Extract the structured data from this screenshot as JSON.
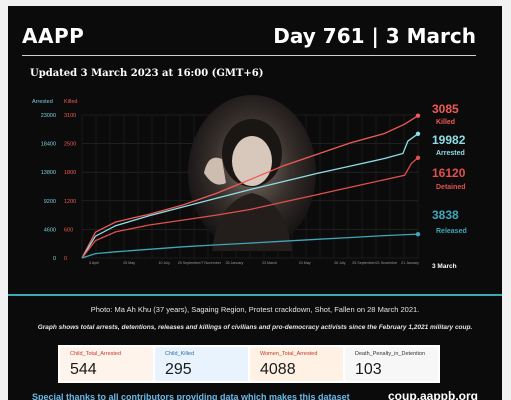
{
  "header": {
    "org": "AAPP",
    "day_label": "Day 761 | 3 March"
  },
  "updated": "Updated 3 March 2023 at 16:00 (GMT+6)",
  "chart_data": {
    "type": "line",
    "left_axis": {
      "label": "Arrested",
      "ticks": [
        "23000",
        "18400",
        "13800",
        "9200",
        "4600",
        "0"
      ],
      "ylim": [
        0,
        23000
      ]
    },
    "right_axis": {
      "label": "Killed",
      "ticks": [
        "3100",
        "2500",
        "1800",
        "1200",
        "600",
        "0"
      ],
      "ylim": [
        0,
        3100
      ]
    },
    "x_ticks": [
      "3 April",
      "25 May",
      "10 July",
      "25 September/7 November",
      "26 January",
      "23 March",
      "24 May",
      "26 July",
      "25 September/21 November",
      "21 January"
    ],
    "end_label": "3 March",
    "xlim": [
      0,
      1
    ],
    "series": [
      {
        "name": "Killed",
        "axis": "right",
        "color": "#ef5b57",
        "final": "3085",
        "x": [
          0,
          0.04,
          0.1,
          0.2,
          0.3,
          0.4,
          0.5,
          0.6,
          0.7,
          0.8,
          0.9,
          0.96,
          1.0
        ],
        "values": [
          0,
          560,
          780,
          950,
          1150,
          1400,
          1700,
          2000,
          2250,
          2500,
          2700,
          2900,
          3085
        ]
      },
      {
        "name": "Arrested",
        "axis": "left",
        "color": "#8fdde6",
        "final": "19982",
        "x": [
          0,
          0.04,
          0.1,
          0.2,
          0.3,
          0.4,
          0.5,
          0.6,
          0.7,
          0.8,
          0.9,
          0.955,
          0.97,
          1.0
        ],
        "values": [
          0,
          3500,
          5200,
          6800,
          8200,
          9600,
          11000,
          12300,
          13600,
          14800,
          16000,
          16800,
          18800,
          19982
        ]
      },
      {
        "name": "Detained",
        "axis": "left",
        "color": "#e0504c",
        "final": "16120",
        "x": [
          0,
          0.04,
          0.1,
          0.2,
          0.3,
          0.4,
          0.5,
          0.6,
          0.7,
          0.8,
          0.9,
          0.96,
          0.98,
          1.0
        ],
        "values": [
          0,
          2800,
          4200,
          5300,
          6100,
          6900,
          7800,
          9000,
          10200,
          11400,
          12600,
          13300,
          15200,
          16120
        ]
      },
      {
        "name": "Released",
        "axis": "left",
        "color": "#3fa7b8",
        "final": "3838",
        "x": [
          0,
          0.04,
          0.1,
          0.2,
          0.3,
          0.4,
          0.5,
          0.6,
          0.7,
          0.8,
          0.9,
          1.0
        ],
        "values": [
          0,
          700,
          1000,
          1400,
          1800,
          2100,
          2400,
          2700,
          3000,
          3300,
          3600,
          3838
        ]
      }
    ]
  },
  "caption": "Photo: Ma Ah Khu (37 years), Sagaing Region, Protest crackdown, Shot, Fallen on 28 March 2021.",
  "note": "Graph shows total arrests, detentions, releases and killings of civilians and pro-democracy activists since the February 1,2021 military coup.",
  "stats": [
    {
      "label": "Child_Total_Arrested",
      "value": "544"
    },
    {
      "label": "Child_Killed",
      "value": "295"
    },
    {
      "label": "Women_Total_Arrested",
      "value": "4088"
    },
    {
      "label": "Death_Penalty_in_Detention",
      "value": "103"
    }
  ],
  "footer": {
    "thanks": "Special thanks to all contributors providing data which makes this dataset",
    "url": "coup.aappb.org"
  },
  "colors": {
    "background": "#0b0b0b",
    "killed": "#ef5b57",
    "arrested": "#8fdde6",
    "detained": "#e0504c",
    "released": "#3fa7b8"
  }
}
